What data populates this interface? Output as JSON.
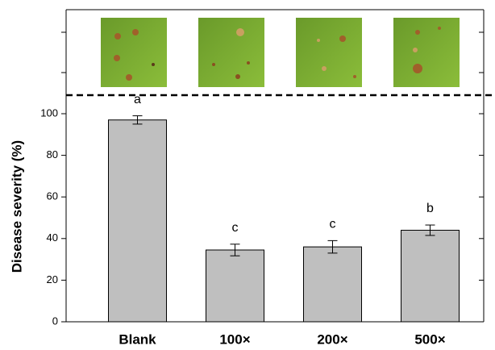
{
  "chart_data": {
    "type": "bar",
    "y_label": "Disease severity (%)",
    "categories": [
      "Blank",
      "100×",
      "200×",
      "500×"
    ],
    "values": [
      97,
      34.5,
      36,
      44
    ],
    "errors": [
      2,
      2.8,
      3,
      2.5
    ],
    "letters": [
      "a",
      "c",
      "c",
      "b"
    ],
    "color": "#bfbfbf",
    "ylim": [
      0,
      150
    ],
    "yticks": [
      0,
      20,
      40,
      60,
      80,
      100
    ]
  }
}
